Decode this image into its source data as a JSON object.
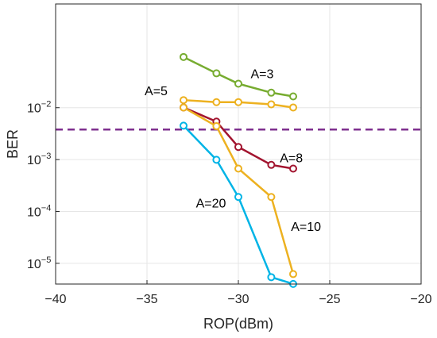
{
  "chart_data": {
    "type": "line",
    "xlabel": "ROP(dBm)",
    "ylabel": "BER",
    "xlim": [
      -40,
      -20
    ],
    "ylog10lim": [
      -5.4,
      0
    ],
    "yscale": "log",
    "grid": true,
    "xticks": [
      {
        "value": -40,
        "label": "−40"
      },
      {
        "value": -35,
        "label": "−35"
      },
      {
        "value": -30,
        "label": "−30"
      },
      {
        "value": -25,
        "label": "−25"
      },
      {
        "value": -20,
        "label": "−20"
      }
    ],
    "yticks": [
      {
        "value": 1e-05,
        "base": "10",
        "exp": "−5"
      },
      {
        "value": 0.0001,
        "base": "10",
        "exp": "−4"
      },
      {
        "value": 0.001,
        "base": "10",
        "exp": "−3"
      },
      {
        "value": 0.01,
        "base": "10",
        "exp": "−2"
      }
    ],
    "threshold": {
      "value": 0.0038,
      "color": "#7E2F8E"
    },
    "series": [
      {
        "color": "#77AC30",
        "x": [
          -33,
          -31.2,
          -30,
          -28.2,
          -27
        ],
        "y": [
          0.095,
          0.046,
          0.029,
          0.0195,
          0.0165
        ]
      },
      {
        "color": "#EDB120",
        "x": [
          -33,
          -31.2,
          -30,
          -28.2,
          -27
        ],
        "y": [
          0.014,
          0.0128,
          0.0128,
          0.0116,
          0.0101
        ]
      },
      {
        "color": "#A2142F",
        "x": [
          -33,
          -31.2,
          -30,
          -28.2,
          -27
        ],
        "y": [
          0.0101,
          0.0054,
          0.00175,
          0.00079,
          0.00067
        ]
      },
      {
        "color": "#EDB120",
        "x": [
          -33,
          -31.2,
          -30,
          -28.2,
          -27
        ],
        "y": [
          0.0101,
          0.0044,
          0.00067,
          0.00019,
          6.2e-06
        ]
      },
      {
        "color": "#00B4E6",
        "x": [
          -33,
          -31.2,
          -30,
          -28.2,
          -27
        ],
        "y": [
          0.0045,
          0.00099,
          0.00019,
          5.4e-06,
          4e-06
        ]
      }
    ],
    "annotations": [
      {
        "text": "A=3",
        "x": -28.7,
        "y": 0.037
      },
      {
        "text": "A=5",
        "x": -34.5,
        "y": 0.0175
      },
      {
        "text": "A=8",
        "x": -27.1,
        "y": 0.00088
      },
      {
        "text": "A=20",
        "x": -31.5,
        "y": 0.00012
      },
      {
        "text": "A=10",
        "x": -26.3,
        "y": 4.2e-05
      }
    ]
  }
}
